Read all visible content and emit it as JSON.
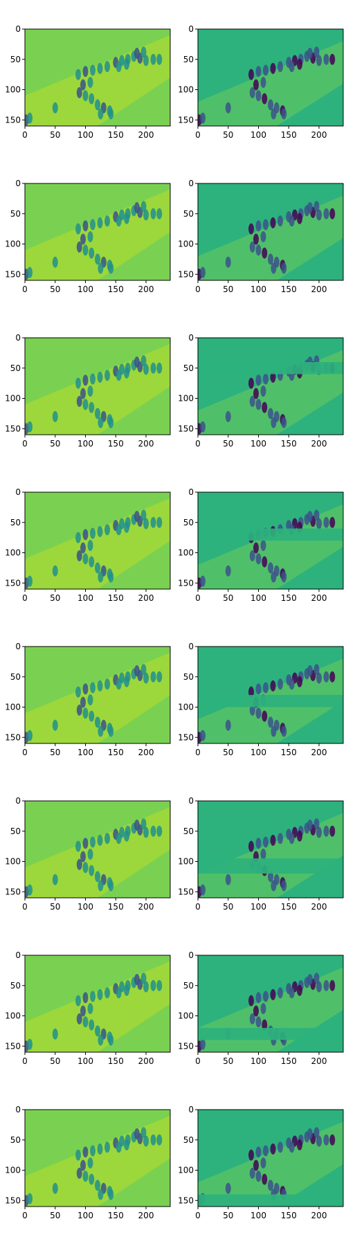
{
  "figure": {
    "rows": 8,
    "cols": 2,
    "colors": {
      "yellow_green": "#b8de29",
      "green": "#7ad151",
      "teal": "#21918c",
      "blue": "#3b528b",
      "dark_purple": "#440154",
      "emerald": "#2db27d"
    }
  },
  "chart_data": {
    "type": "heatmap",
    "image_shape": [
      160,
      240
    ],
    "xlim": [
      0,
      240
    ],
    "ylim": [
      160,
      0
    ],
    "xticks": [
      0,
      50,
      100,
      150,
      200
    ],
    "yticks": [
      0,
      50,
      100,
      150
    ],
    "panels": [
      {
        "row": 0,
        "col": 0,
        "kind": "reconstruction",
        "band": null
      },
      {
        "row": 0,
        "col": 1,
        "kind": "residual",
        "band": [
          0,
          5
        ]
      },
      {
        "row": 1,
        "col": 0,
        "kind": "reconstruction",
        "band": null
      },
      {
        "row": 1,
        "col": 1,
        "kind": "residual",
        "band": [
          0,
          20
        ]
      },
      {
        "row": 2,
        "col": 0,
        "kind": "reconstruction",
        "band": null
      },
      {
        "row": 2,
        "col": 1,
        "kind": "residual",
        "band": [
          40,
          60
        ]
      },
      {
        "row": 3,
        "col": 0,
        "kind": "reconstruction",
        "band": null
      },
      {
        "row": 3,
        "col": 1,
        "kind": "residual",
        "band": [
          60,
          80
        ]
      },
      {
        "row": 4,
        "col": 0,
        "kind": "reconstruction",
        "band": null
      },
      {
        "row": 4,
        "col": 1,
        "kind": "residual",
        "band": [
          80,
          100
        ]
      },
      {
        "row": 5,
        "col": 0,
        "kind": "reconstruction",
        "band": null
      },
      {
        "row": 5,
        "col": 1,
        "kind": "residual",
        "band": [
          95,
          120
        ]
      },
      {
        "row": 6,
        "col": 0,
        "kind": "reconstruction",
        "band": null
      },
      {
        "row": 6,
        "col": 1,
        "kind": "residual",
        "band": [
          120,
          140
        ]
      },
      {
        "row": 7,
        "col": 0,
        "kind": "reconstruction",
        "band": null
      },
      {
        "row": 7,
        "col": 1,
        "kind": "residual",
        "band": [
          140,
          160
        ]
      }
    ]
  }
}
